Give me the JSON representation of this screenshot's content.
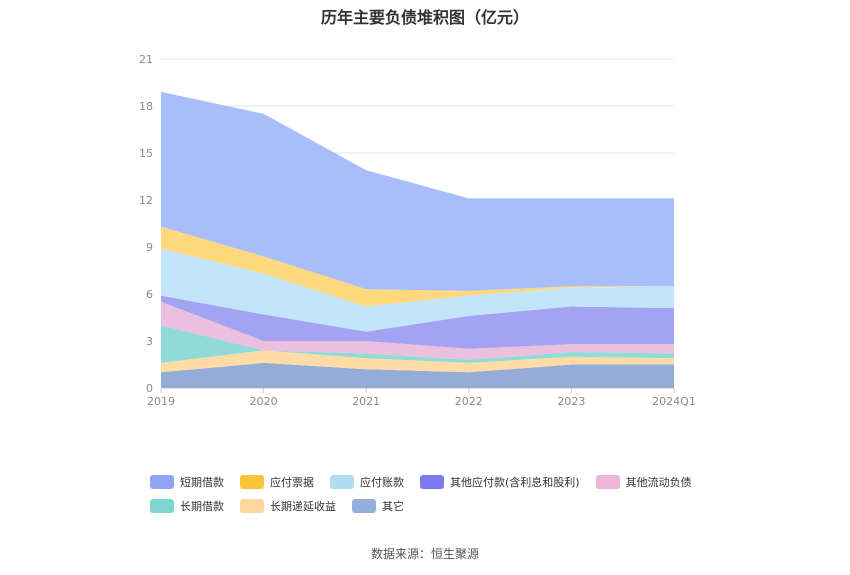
{
  "chart_data": {
    "type": "area",
    "stacked": true,
    "title": "历年主要负债堆积图（亿元）",
    "categories": [
      "2019",
      "2020",
      "2021",
      "2022",
      "2023",
      "2024Q1"
    ],
    "ylim": [
      0,
      21
    ],
    "yticks": [
      0,
      3,
      6,
      9,
      12,
      15,
      18,
      21
    ],
    "grid": true,
    "legend_position": "bottom",
    "series": [
      {
        "name": "其它",
        "color": "#8fa8d6",
        "values": [
          1.0,
          1.6,
          1.2,
          1.0,
          1.5,
          1.5
        ]
      },
      {
        "name": "长期递延收益",
        "color": "#ffd9a0",
        "values": [
          0.6,
          0.8,
          0.7,
          0.6,
          0.5,
          0.4
        ]
      },
      {
        "name": "长期借款",
        "color": "#8ad9d6",
        "values": [
          2.4,
          0.0,
          0.3,
          0.2,
          0.3,
          0.3
        ]
      },
      {
        "name": "其他流动负债",
        "color": "#ebbcdc",
        "values": [
          1.5,
          0.6,
          0.8,
          0.7,
          0.5,
          0.6
        ]
      },
      {
        "name": "其他应付款(含利息和股利)",
        "color": "#9e9ef2",
        "values": [
          0.4,
          1.7,
          0.6,
          2.1,
          2.4,
          2.3
        ]
      },
      {
        "name": "应付账款",
        "color": "#c0e4fa",
        "values": [
          3.0,
          2.6,
          1.6,
          1.3,
          1.2,
          1.4
        ]
      },
      {
        "name": "应付票据",
        "color": "#ffd777",
        "values": [
          1.4,
          1.1,
          1.1,
          0.3,
          0.1,
          0.0
        ]
      },
      {
        "name": "短期借款",
        "color": "#a3b9fa",
        "values": [
          8.6,
          9.1,
          7.6,
          5.9,
          5.6,
          5.6
        ]
      }
    ]
  },
  "legend": {
    "row1": [
      {
        "label": "短期借款",
        "color": "#8fa6f6"
      },
      {
        "label": "应付票据",
        "color": "#fcc43c"
      },
      {
        "label": "应付账款",
        "color": "#b0dcf6"
      },
      {
        "label": "其他应付款(含利息和股利)",
        "color": "#7a7af0"
      },
      {
        "label": "其他流动负债",
        "color": "#ebb8da"
      }
    ],
    "row2": [
      {
        "label": "长期借款",
        "color": "#7dd6d2"
      },
      {
        "label": "长期递延收益",
        "color": "#ffd79c"
      },
      {
        "label": "其它",
        "color": "#93aedc"
      }
    ]
  },
  "source": "数据来源：恒生聚源"
}
